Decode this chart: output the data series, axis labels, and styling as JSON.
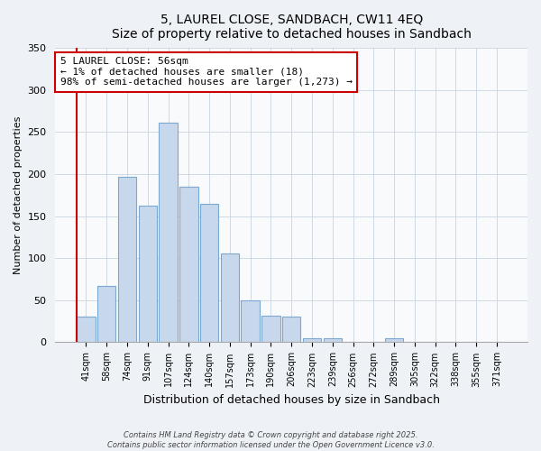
{
  "title": "5, LAUREL CLOSE, SANDBACH, CW11 4EQ",
  "subtitle": "Size of property relative to detached houses in Sandbach",
  "xlabel": "Distribution of detached houses by size in Sandbach",
  "ylabel": "Number of detached properties",
  "bar_labels": [
    "41sqm",
    "58sqm",
    "74sqm",
    "91sqm",
    "107sqm",
    "124sqm",
    "140sqm",
    "157sqm",
    "173sqm",
    "190sqm",
    "206sqm",
    "223sqm",
    "239sqm",
    "256sqm",
    "272sqm",
    "289sqm",
    "305sqm",
    "322sqm",
    "338sqm",
    "355sqm",
    "371sqm"
  ],
  "bar_values": [
    30,
    67,
    197,
    163,
    261,
    185,
    165,
    106,
    50,
    32,
    30,
    5,
    5,
    0,
    0,
    5,
    0,
    0,
    0,
    0,
    1
  ],
  "bar_color": "#c8d8ec",
  "bar_edge_color": "#7ba8d0",
  "marker_line_color": "#cc0000",
  "annotation_box_edge_color": "#cc0000",
  "annotation_box_face_color": "#ffffff",
  "annotation_text": "5 LAUREL CLOSE: 56sqm\n← 1% of detached houses are smaller (18)\n98% of semi-detached houses are larger (1,273) →",
  "ylim": [
    0,
    350
  ],
  "yticks": [
    0,
    50,
    100,
    150,
    200,
    250,
    300,
    350
  ],
  "footer1": "Contains HM Land Registry data © Crown copyright and database right 2025.",
  "footer2": "Contains public sector information licensed under the Open Government Licence v3.0.",
  "background_color": "#eef2f7",
  "plot_background_color": "#f8fafc",
  "grid_color": "#c8d4e0"
}
